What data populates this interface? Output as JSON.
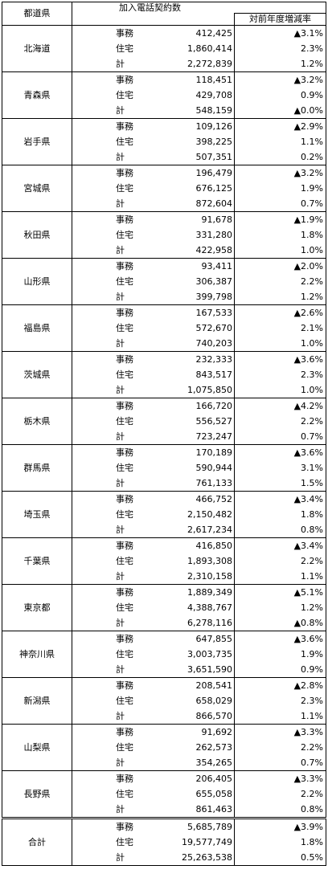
{
  "header": {
    "prefecture": "都道県",
    "title": "加入電話契約数",
    "rate": "対前年度増減率"
  },
  "rows": [
    {
      "name": "北海道",
      "entries": [
        {
          "type": "事務",
          "count": "412,425",
          "rate": "▲3.1%"
        },
        {
          "type": "住宅",
          "count": "1,860,414",
          "rate": "2.3%"
        },
        {
          "type": "計",
          "count": "2,272,839",
          "rate": "1.2%"
        }
      ]
    },
    {
      "name": "青森県",
      "entries": [
        {
          "type": "事務",
          "count": "118,451",
          "rate": "▲3.2%"
        },
        {
          "type": "住宅",
          "count": "429,708",
          "rate": "0.9%"
        },
        {
          "type": "計",
          "count": "548,159",
          "rate": "▲0.0%"
        }
      ]
    },
    {
      "name": "岩手県",
      "entries": [
        {
          "type": "事務",
          "count": "109,126",
          "rate": "▲2.9%"
        },
        {
          "type": "住宅",
          "count": "398,225",
          "rate": "1.1%"
        },
        {
          "type": "計",
          "count": "507,351",
          "rate": "0.2%"
        }
      ]
    },
    {
      "name": "宮城県",
      "entries": [
        {
          "type": "事務",
          "count": "196,479",
          "rate": "▲3.2%"
        },
        {
          "type": "住宅",
          "count": "676,125",
          "rate": "1.9%"
        },
        {
          "type": "計",
          "count": "872,604",
          "rate": "0.7%"
        }
      ]
    },
    {
      "name": "秋田県",
      "entries": [
        {
          "type": "事務",
          "count": "91,678",
          "rate": "▲1.9%"
        },
        {
          "type": "住宅",
          "count": "331,280",
          "rate": "1.8%"
        },
        {
          "type": "計",
          "count": "422,958",
          "rate": "1.0%"
        }
      ]
    },
    {
      "name": "山形県",
      "entries": [
        {
          "type": "事務",
          "count": "93,411",
          "rate": "▲2.0%"
        },
        {
          "type": "住宅",
          "count": "306,387",
          "rate": "2.2%"
        },
        {
          "type": "計",
          "count": "399,798",
          "rate": "1.2%"
        }
      ]
    },
    {
      "name": "福島県",
      "entries": [
        {
          "type": "事務",
          "count": "167,533",
          "rate": "▲2.6%"
        },
        {
          "type": "住宅",
          "count": "572,670",
          "rate": "2.1%"
        },
        {
          "type": "計",
          "count": "740,203",
          "rate": "1.0%"
        }
      ]
    },
    {
      "name": "茨城県",
      "entries": [
        {
          "type": "事務",
          "count": "232,333",
          "rate": "▲3.6%"
        },
        {
          "type": "住宅",
          "count": "843,517",
          "rate": "2.3%"
        },
        {
          "type": "計",
          "count": "1,075,850",
          "rate": "1.0%"
        }
      ]
    },
    {
      "name": "栃木県",
      "entries": [
        {
          "type": "事務",
          "count": "166,720",
          "rate": "▲4.2%"
        },
        {
          "type": "住宅",
          "count": "556,527",
          "rate": "2.2%"
        },
        {
          "type": "計",
          "count": "723,247",
          "rate": "0.7%"
        }
      ]
    },
    {
      "name": "群馬県",
      "entries": [
        {
          "type": "事務",
          "count": "170,189",
          "rate": "▲3.6%"
        },
        {
          "type": "住宅",
          "count": "590,944",
          "rate": "3.1%"
        },
        {
          "type": "計",
          "count": "761,133",
          "rate": "1.5%"
        }
      ]
    },
    {
      "name": "埼玉県",
      "entries": [
        {
          "type": "事務",
          "count": "466,752",
          "rate": "▲3.4%"
        },
        {
          "type": "住宅",
          "count": "2,150,482",
          "rate": "1.8%"
        },
        {
          "type": "計",
          "count": "2,617,234",
          "rate": "0.8%"
        }
      ]
    },
    {
      "name": "千葉県",
      "entries": [
        {
          "type": "事務",
          "count": "416,850",
          "rate": "▲3.4%"
        },
        {
          "type": "住宅",
          "count": "1,893,308",
          "rate": "2.2%"
        },
        {
          "type": "計",
          "count": "2,310,158",
          "rate": "1.1%"
        }
      ]
    },
    {
      "name": "東京都",
      "entries": [
        {
          "type": "事務",
          "count": "1,889,349",
          "rate": "▲5.1%"
        },
        {
          "type": "住宅",
          "count": "4,388,767",
          "rate": "1.2%"
        },
        {
          "type": "計",
          "count": "6,278,116",
          "rate": "▲0.8%"
        }
      ]
    },
    {
      "name": "神奈川県",
      "entries": [
        {
          "type": "事務",
          "count": "647,855",
          "rate": "▲3.6%"
        },
        {
          "type": "住宅",
          "count": "3,003,735",
          "rate": "1.9%"
        },
        {
          "type": "計",
          "count": "3,651,590",
          "rate": "0.9%"
        }
      ]
    },
    {
      "name": "新潟県",
      "entries": [
        {
          "type": "事務",
          "count": "208,541",
          "rate": "▲2.8%"
        },
        {
          "type": "住宅",
          "count": "658,029",
          "rate": "2.3%"
        },
        {
          "type": "計",
          "count": "866,570",
          "rate": "1.1%"
        }
      ]
    },
    {
      "name": "山梨県",
      "entries": [
        {
          "type": "事務",
          "count": "91,692",
          "rate": "▲3.3%"
        },
        {
          "type": "住宅",
          "count": "262,573",
          "rate": "2.2%"
        },
        {
          "type": "計",
          "count": "354,265",
          "rate": "0.7%"
        }
      ]
    },
    {
      "name": "長野県",
      "entries": [
        {
          "type": "事務",
          "count": "206,405",
          "rate": "▲3.3%"
        },
        {
          "type": "住宅",
          "count": "655,058",
          "rate": "2.2%"
        },
        {
          "type": "計",
          "count": "861,463",
          "rate": "0.8%"
        }
      ]
    }
  ],
  "total": {
    "name": "合計",
    "entries": [
      {
        "type": "事務",
        "count": "5,685,789",
        "rate": "▲3.9%"
      },
      {
        "type": "住宅",
        "count": "19,577,749",
        "rate": "1.8%"
      },
      {
        "type": "計",
        "count": "25,263,538",
        "rate": "0.5%"
      }
    ]
  }
}
